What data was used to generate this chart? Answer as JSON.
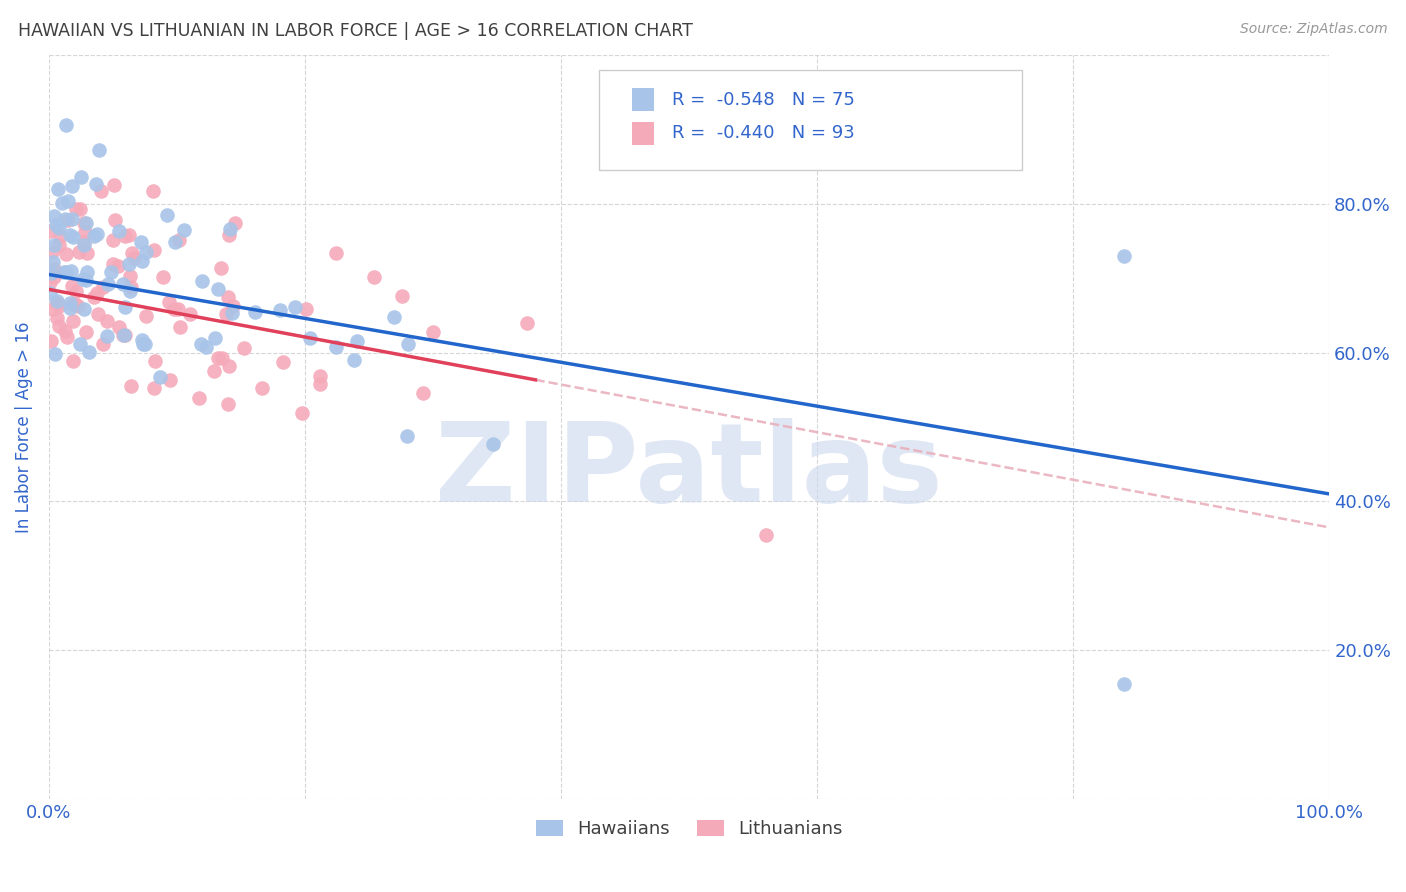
{
  "title": "HAWAIIAN VS LITHUANIAN IN LABOR FORCE | AGE > 16 CORRELATION CHART",
  "source": "Source: ZipAtlas.com",
  "ylabel": "In Labor Force | Age > 16",
  "watermark": "ZIPatlas",
  "legend_blue_r": "-0.548",
  "legend_blue_n": "75",
  "legend_pink_r": "-0.440",
  "legend_pink_n": "93",
  "legend_blue_label": "Hawaiians",
  "legend_pink_label": "Lithuanians",
  "xlim": [
    0.0,
    1.0
  ],
  "ylim": [
    0.0,
    1.0
  ],
  "blue_color": "#a8c4e8",
  "pink_color": "#f5aaba",
  "blue_line_color": "#2266cc",
  "pink_line_color": "#e0405a",
  "pink_dashed_color": "#e8b0bc",
  "background": "#ffffff",
  "grid_color": "#cccccc",
  "title_color": "#404040",
  "axis_label_color": "#3366cc",
  "watermark_color": "#ccd8ee",
  "n_blue": 75,
  "n_pink": 93,
  "r_blue": -0.548,
  "r_pink": -0.44,
  "blue_intercept": 0.705,
  "blue_slope": -0.295,
  "pink_intercept": 0.685,
  "pink_slope": -0.32
}
